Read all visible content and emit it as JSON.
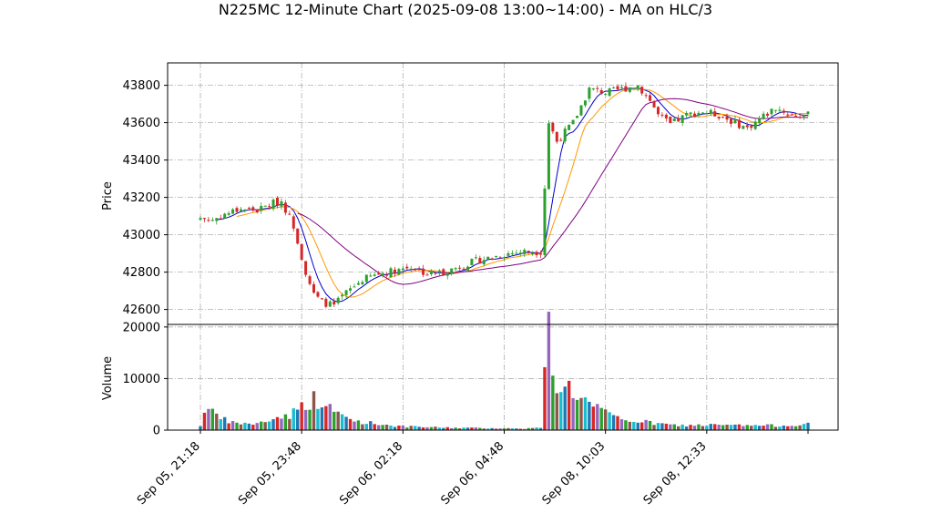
{
  "chart_data": {
    "type": "candlestick",
    "title": "N225MC 12-Minute Chart (2025-09-08 13:00~14:00) - MA on HLC/3",
    "price_panel": {
      "ylabel": "Price",
      "ylim": [
        42520,
        43920
      ],
      "yticks": [
        42600,
        42800,
        43000,
        43200,
        43400,
        43600,
        43800
      ]
    },
    "volume_panel": {
      "ylabel": "Volume",
      "ylim": [
        0,
        20500
      ],
      "yticks": [
        0,
        10000,
        20000
      ]
    },
    "x_tick_labels": [
      "Sep 05, 21:18",
      "Sep 05, 23:48",
      "Sep 06, 02:18",
      "Sep 06, 04:48",
      "Sep 08, 10:03",
      "Sep 08, 12:33"
    ],
    "x_tick_index": [
      0,
      25,
      50,
      75,
      100,
      125
    ],
    "bar_count": 151,
    "price_anchors": [
      [
        0,
        43090
      ],
      [
        3,
        43080
      ],
      [
        6,
        43110
      ],
      [
        10,
        43140
      ],
      [
        14,
        43130
      ],
      [
        18,
        43170
      ],
      [
        20,
        43180
      ],
      [
        23,
        43050
      ],
      [
        26,
        42800
      ],
      [
        28,
        42680
      ],
      [
        30,
        42640
      ],
      [
        33,
        42620
      ],
      [
        36,
        42690
      ],
      [
        40,
        42760
      ],
      [
        44,
        42790
      ],
      [
        48,
        42810
      ],
      [
        52,
        42830
      ],
      [
        56,
        42790
      ],
      [
        60,
        42800
      ],
      [
        64,
        42830
      ],
      [
        68,
        42860
      ],
      [
        72,
        42880
      ],
      [
        76,
        42900
      ],
      [
        80,
        42910
      ],
      [
        84,
        42910
      ],
      [
        86,
        43600
      ],
      [
        88,
        43500
      ],
      [
        92,
        43600
      ],
      [
        96,
        43780
      ],
      [
        100,
        43760
      ],
      [
        104,
        43780
      ],
      [
        108,
        43800
      ],
      [
        111,
        43720
      ],
      [
        113,
        43640
      ],
      [
        116,
        43590
      ],
      [
        120,
        43640
      ],
      [
        124,
        43660
      ],
      [
        128,
        43640
      ],
      [
        132,
        43600
      ],
      [
        135,
        43570
      ],
      [
        138,
        43620
      ],
      [
        142,
        43680
      ],
      [
        146,
        43640
      ],
      [
        150,
        43640
      ]
    ],
    "volume_anchors": [
      [
        0,
        900
      ],
      [
        2,
        5500
      ],
      [
        4,
        2500
      ],
      [
        8,
        1400
      ],
      [
        14,
        1200
      ],
      [
        18,
        2200
      ],
      [
        22,
        3000
      ],
      [
        24,
        4000
      ],
      [
        26,
        5200
      ],
      [
        28,
        6000
      ],
      [
        30,
        5000
      ],
      [
        34,
        3200
      ],
      [
        38,
        1800
      ],
      [
        44,
        1200
      ],
      [
        50,
        700
      ],
      [
        60,
        500
      ],
      [
        70,
        400
      ],
      [
        80,
        300
      ],
      [
        84,
        500
      ],
      [
        86,
        19500
      ],
      [
        88,
        8500
      ],
      [
        90,
        9000
      ],
      [
        93,
        7000
      ],
      [
        96,
        5000
      ],
      [
        100,
        3200
      ],
      [
        104,
        2000
      ],
      [
        108,
        1800
      ],
      [
        112,
        1300
      ],
      [
        118,
        900
      ],
      [
        125,
        1000
      ],
      [
        135,
        900
      ],
      [
        145,
        900
      ],
      [
        150,
        1300
      ]
    ],
    "ma_periods": [
      5,
      10,
      25
    ],
    "colors": {
      "up": "#2ca02c",
      "down": "#d62728",
      "ma_short": "#0000cc",
      "ma_mid": "#ff9900",
      "ma_long": "#800080",
      "volume_palette": [
        "#1f77b4",
        "#d62728",
        "#9467bd",
        "#2ca02c",
        "#8c564b",
        "#17becf"
      ],
      "grid": "#b0b0b0"
    },
    "grid": true,
    "legend": "none"
  }
}
